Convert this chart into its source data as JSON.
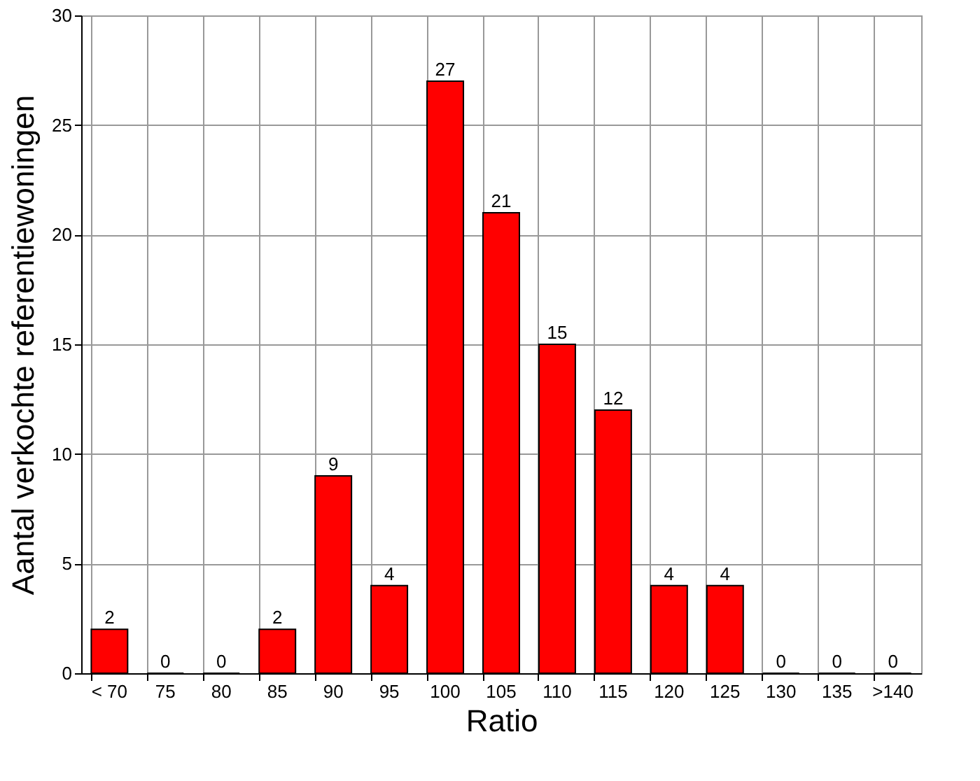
{
  "chart_data": {
    "type": "bar",
    "xlabel": "Ratio",
    "ylabel": "Aantal verkochte referentiewoningen",
    "categories": [
      "< 70",
      "75",
      "80",
      "85",
      "90",
      "95",
      "100",
      "105",
      "110",
      "115",
      "120",
      "125",
      "130",
      "135",
      ">140"
    ],
    "values": [
      2,
      0,
      0,
      2,
      9,
      4,
      27,
      21,
      15,
      12,
      4,
      4,
      0,
      0,
      0
    ],
    "color": "#ff0000",
    "ylim": [
      0,
      30
    ],
    "yticks": [
      0,
      5,
      10,
      15,
      20,
      25,
      30
    ],
    "grid": true,
    "data_labels": true
  }
}
